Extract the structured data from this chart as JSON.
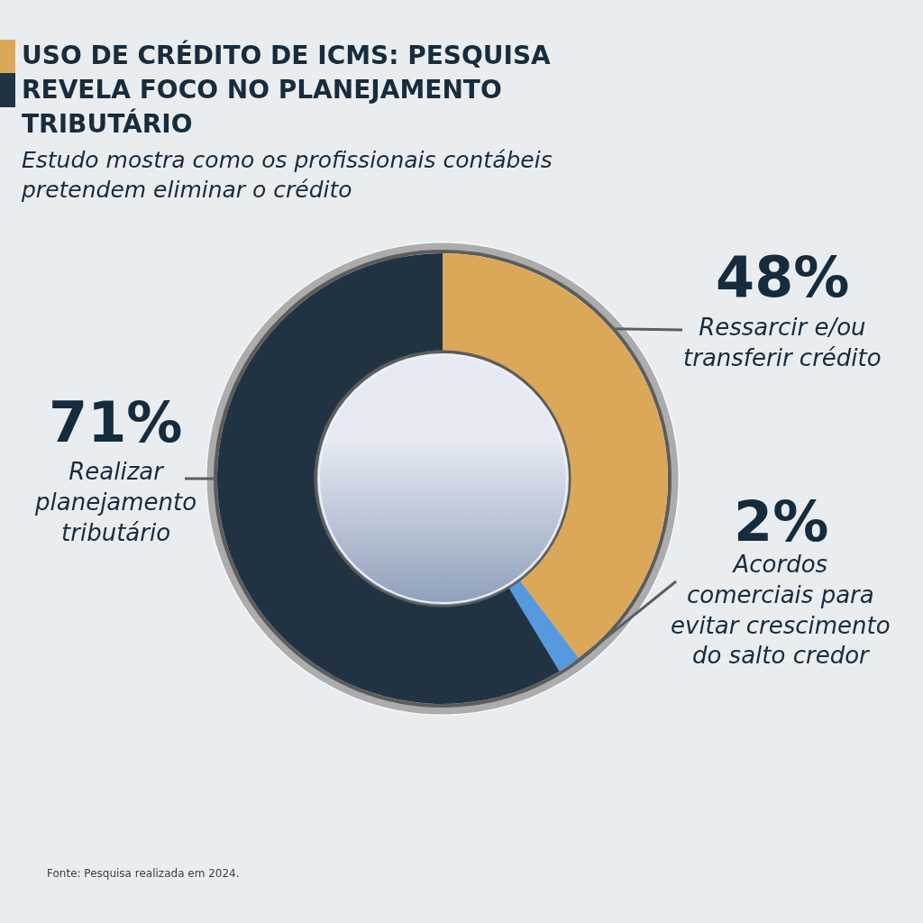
{
  "chart_data": {
    "type": "donut",
    "title": "USO DE CRÉDITO DE ICMS: PESQUISA REVELA FOCO NO PLANEJAMENTO TRIBUTÁRIO",
    "subtitle": "Estudo mostra como os profissionais contábeis pretendem eliminar o crédito",
    "categories": [
      "Ressarcir e/ou transferir crédito",
      "Acordos comerciais para evitar crescimento do salto credor",
      "Realizar planejamento tributário"
    ],
    "values": [
      48,
      2,
      71
    ],
    "colors": [
      "#dba85a",
      "#5799dd",
      "#213242"
    ],
    "value_labels": [
      "48%",
      "2%",
      "71%"
    ],
    "annotations": [
      "Fonte: Pesquisa realizada em 2024."
    ],
    "legend": false
  }
}
